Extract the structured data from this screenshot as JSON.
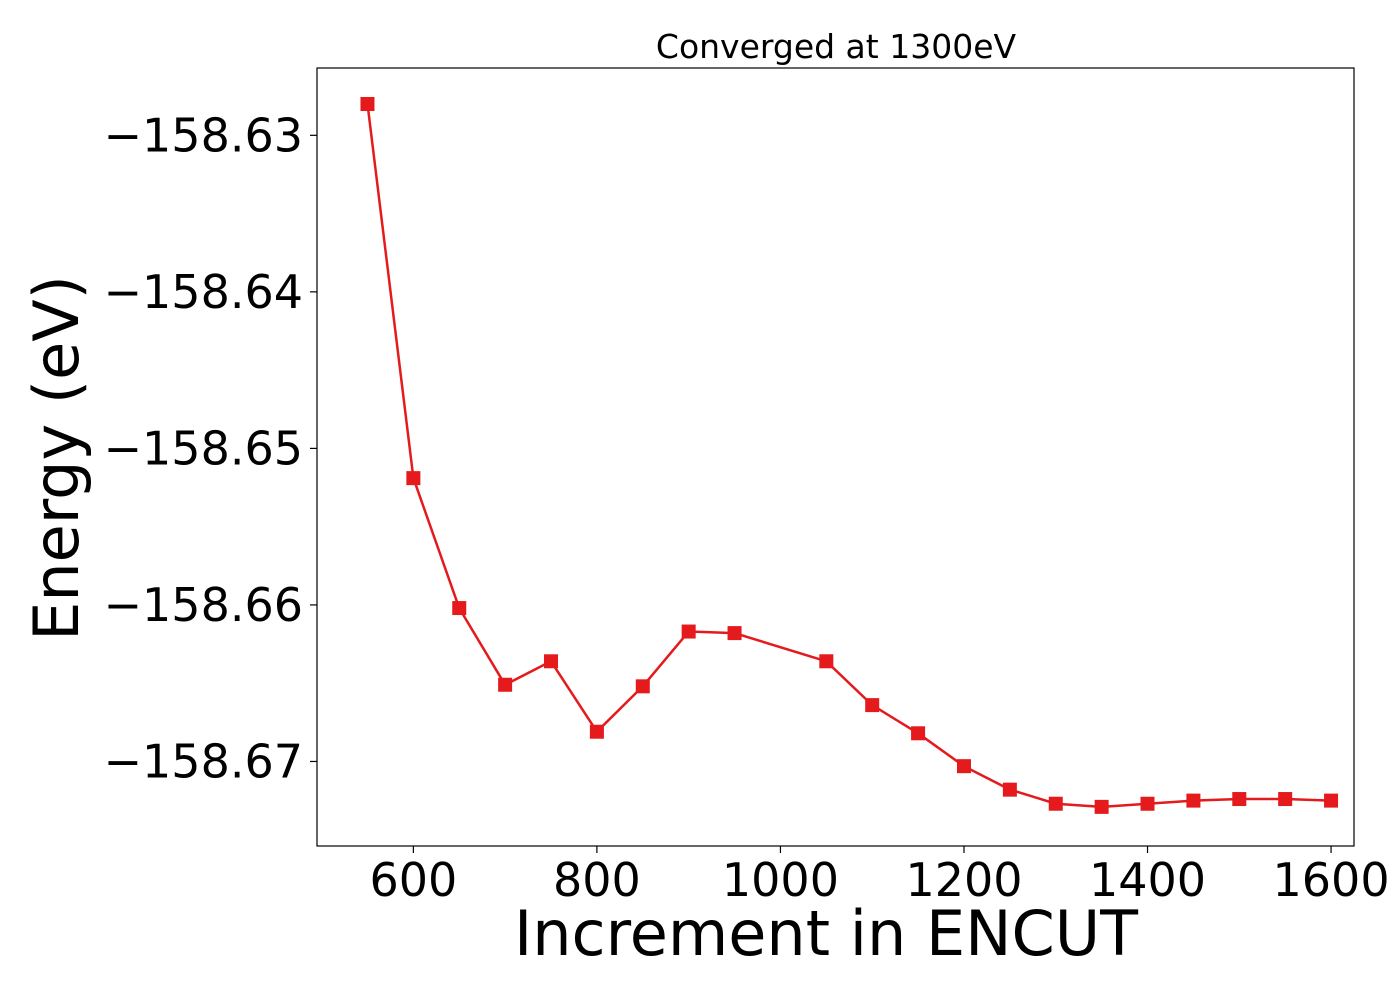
{
  "chart_data": {
    "type": "line",
    "title": "Converged at 1300eV",
    "xlabel": "Increment in ENCUT",
    "ylabel": "Energy (eV)",
    "xlim": [
      495,
      1625
    ],
    "ylim": [
      -158.6754,
      -158.6257
    ],
    "xticks": [
      600,
      800,
      1000,
      1200,
      1400,
      1600
    ],
    "xtick_labels": [
      "600",
      "800",
      "1000",
      "1200",
      "1400",
      "1600"
    ],
    "yticks": [
      -158.63,
      -158.64,
      -158.65,
      -158.66,
      -158.67
    ],
    "ytick_labels": [
      "−158.63",
      "−158.64",
      "−158.65",
      "−158.66",
      "−158.67"
    ],
    "grid": false,
    "series": [
      {
        "marker": "square",
        "color": "#e41a1c",
        "x": [
          550,
          600,
          650,
          700,
          750,
          800,
          850,
          900,
          950,
          1050,
          1100,
          1150,
          1200,
          1250,
          1300,
          1350,
          1400,
          1450,
          1500,
          1550,
          1600
        ],
        "y": [
          -158.628,
          -158.6519,
          -158.6602,
          -158.6651,
          -158.6636,
          -158.6681,
          -158.6652,
          -158.6617,
          -158.6618,
          -158.6636,
          -158.6664,
          -158.6682,
          -158.6703,
          -158.6718,
          -158.6727,
          -158.6729,
          -158.6727,
          -158.6725,
          -158.6724,
          -158.6724,
          -158.6725
        ]
      }
    ]
  }
}
